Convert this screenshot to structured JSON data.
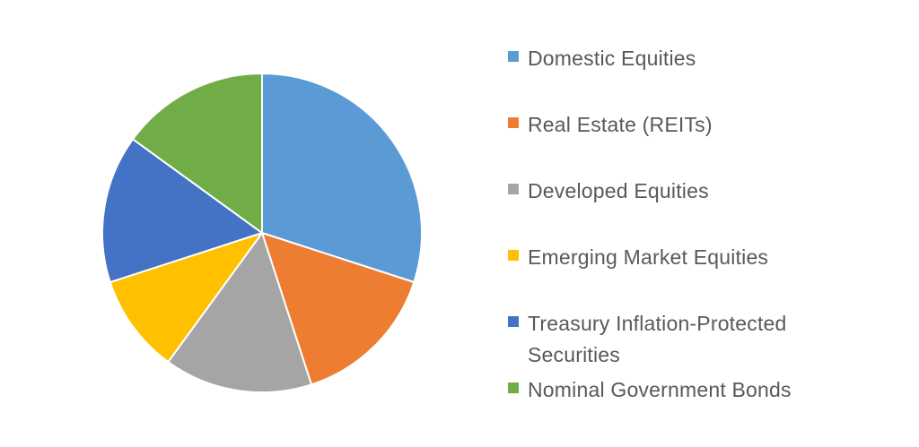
{
  "chart_data": {
    "type": "pie",
    "slices": [
      {
        "label": "Domestic Equities",
        "value": 30,
        "color": "#5B9BD5"
      },
      {
        "label": "Real Estate (REITs)",
        "value": 15,
        "color": "#ED7D31"
      },
      {
        "label": "Developed Equities",
        "value": 15,
        "color": "#A5A5A5"
      },
      {
        "label": "Emerging Market Equities",
        "value": 10,
        "color": "#FFC000"
      },
      {
        "label": "Treasury Inflation-Protected Securities",
        "value": 15,
        "color": "#4472C4"
      },
      {
        "label": "Nominal Government Bonds",
        "value": 15,
        "color": "#70AD47"
      }
    ],
    "legend_position": "right",
    "start_angle_deg": 0,
    "direction": "clockwise"
  }
}
